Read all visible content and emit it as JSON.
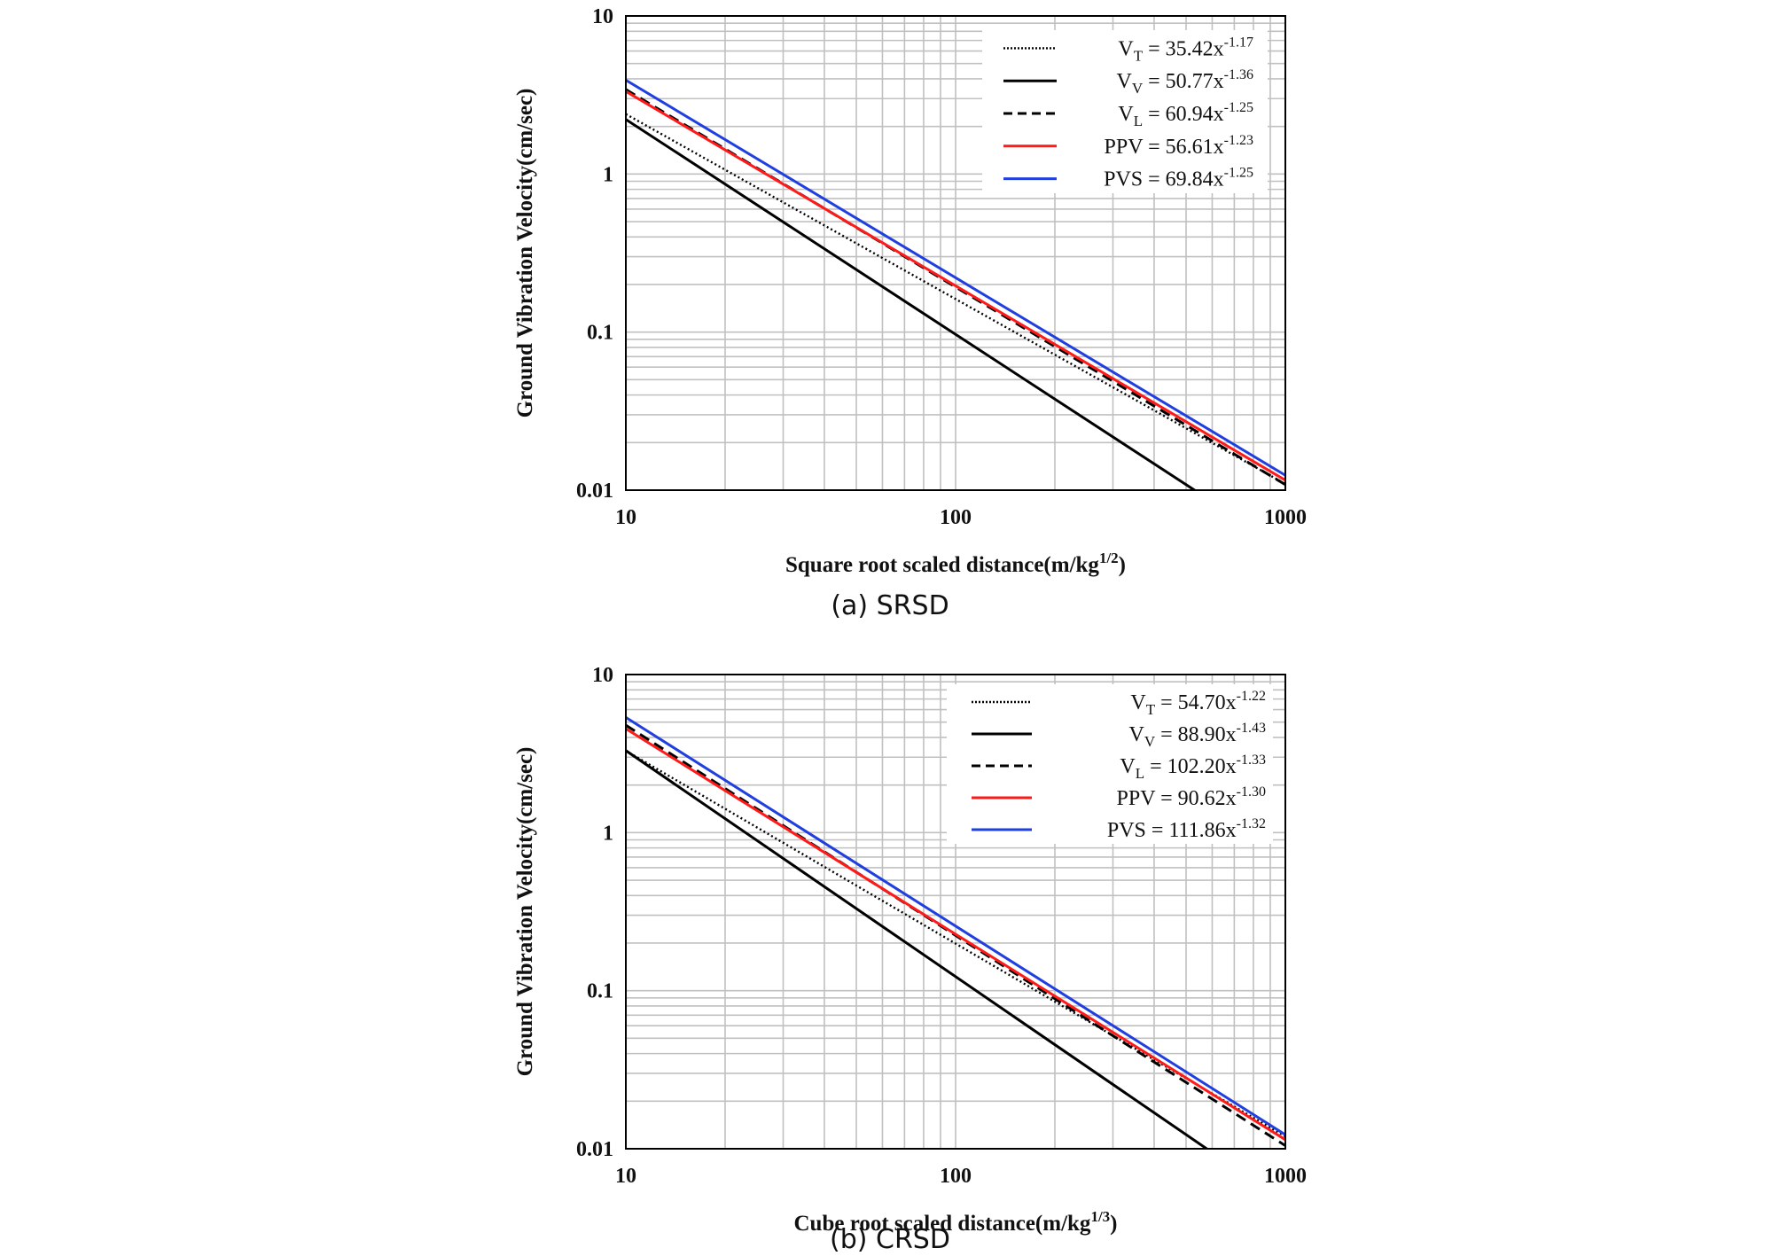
{
  "figure": {
    "caption_a": "(a) SRSD",
    "caption_b": "(b) CRSD"
  },
  "colors": {
    "black": "#000000",
    "red": "#ff1a1a",
    "blue": "#1f3fe0",
    "grid": "#c0c0c0"
  },
  "chart_data": [
    {
      "type": "line",
      "xscale": "log",
      "yscale": "log",
      "xlim": [
        10,
        1000
      ],
      "ylim": [
        0.01,
        10
      ],
      "grid": true,
      "legend": "top-right",
      "xlabel": "Square  root scaled distance(m/kg",
      "xlabel_sup": "1/2",
      "xlabel_end": ")",
      "ylabel": "Ground Vibration Velocity(cm/sec)",
      "xticks": [
        "10",
        "100",
        "1000"
      ],
      "yticks": [
        "10",
        "1",
        "0.1",
        "0.01"
      ],
      "series": [
        {
          "name": "V_T = 35.42x^-1.17",
          "label_pre": "V",
          "label_sub": "T",
          "label_mid": " = 35.42x",
          "label_exp": "-1.17",
          "a": 35.42,
          "b": -1.17,
          "style": "dotted",
          "color": "#000000"
        },
        {
          "name": "V_V = 50.77x^-1.36",
          "label_pre": "V",
          "label_sub": "V",
          "label_mid": " = 50.77x",
          "label_exp": "-1.36",
          "a": 50.77,
          "b": -1.36,
          "style": "solid",
          "color": "#000000"
        },
        {
          "name": "V_L = 60.94x^-1.25",
          "label_pre": "V",
          "label_sub": "L",
          "label_mid": " = 60.94x",
          "label_exp": "-1.25",
          "a": 60.94,
          "b": -1.25,
          "style": "dashed",
          "color": "#000000"
        },
        {
          "name": "PPV = 56.61x^-1.23",
          "label_pre": "PPV",
          "label_sub": "",
          "label_mid": " = 56.61x",
          "label_exp": "-1.23",
          "a": 56.61,
          "b": -1.23,
          "style": "solid",
          "color": "#ff1a1a"
        },
        {
          "name": "PVS = 69.84x^-1.25",
          "label_pre": "PVS",
          "label_sub": "",
          "label_mid": " = 69.84x",
          "label_exp": "-1.25",
          "a": 69.84,
          "b": -1.25,
          "style": "solid",
          "color": "#1f3fe0"
        }
      ]
    },
    {
      "type": "line",
      "xscale": "log",
      "yscale": "log",
      "xlim": [
        10,
        1000
      ],
      "ylim": [
        0.01,
        10
      ],
      "grid": true,
      "legend": "top-right",
      "xlabel": "Cube  root scaled distance(m/kg",
      "xlabel_sup": "1/3",
      "xlabel_end": ")",
      "ylabel": "Ground Vibration Velocity(cm/sec)",
      "xticks": [
        "10",
        "100",
        "1000"
      ],
      "yticks": [
        "10",
        "1",
        "0.1",
        "0.01"
      ],
      "series": [
        {
          "name": "V_T = 54.70x^-1.22",
          "label_pre": "V",
          "label_sub": "T",
          "label_mid": " = 54.70x",
          "label_exp": "-1.22",
          "a": 54.7,
          "b": -1.22,
          "style": "dotted",
          "color": "#000000"
        },
        {
          "name": "V_V = 88.90x^-1.43",
          "label_pre": "V",
          "label_sub": "V",
          "label_mid": " = 88.90x",
          "label_exp": "-1.43",
          "a": 88.9,
          "b": -1.43,
          "style": "solid",
          "color": "#000000"
        },
        {
          "name": "V_L = 102.20x^-1.33",
          "label_pre": "V",
          "label_sub": "L",
          "label_mid": " = 102.20x",
          "label_exp": "-1.33",
          "a": 102.2,
          "b": -1.33,
          "style": "dashed",
          "color": "#000000"
        },
        {
          "name": "PPV = 90.62x^-1.30",
          "label_pre": "PPV",
          "label_sub": "",
          "label_mid": " = 90.62x",
          "label_exp": "-1.30",
          "a": 90.62,
          "b": -1.3,
          "style": "solid",
          "color": "#ff1a1a"
        },
        {
          "name": "PVS = 111.86x^-1.32",
          "label_pre": "PVS",
          "label_sub": "",
          "label_mid": " = 111.86x",
          "label_exp": "-1.32",
          "a": 111.86,
          "b": -1.32,
          "style": "solid",
          "color": "#1f3fe0"
        }
      ]
    }
  ]
}
